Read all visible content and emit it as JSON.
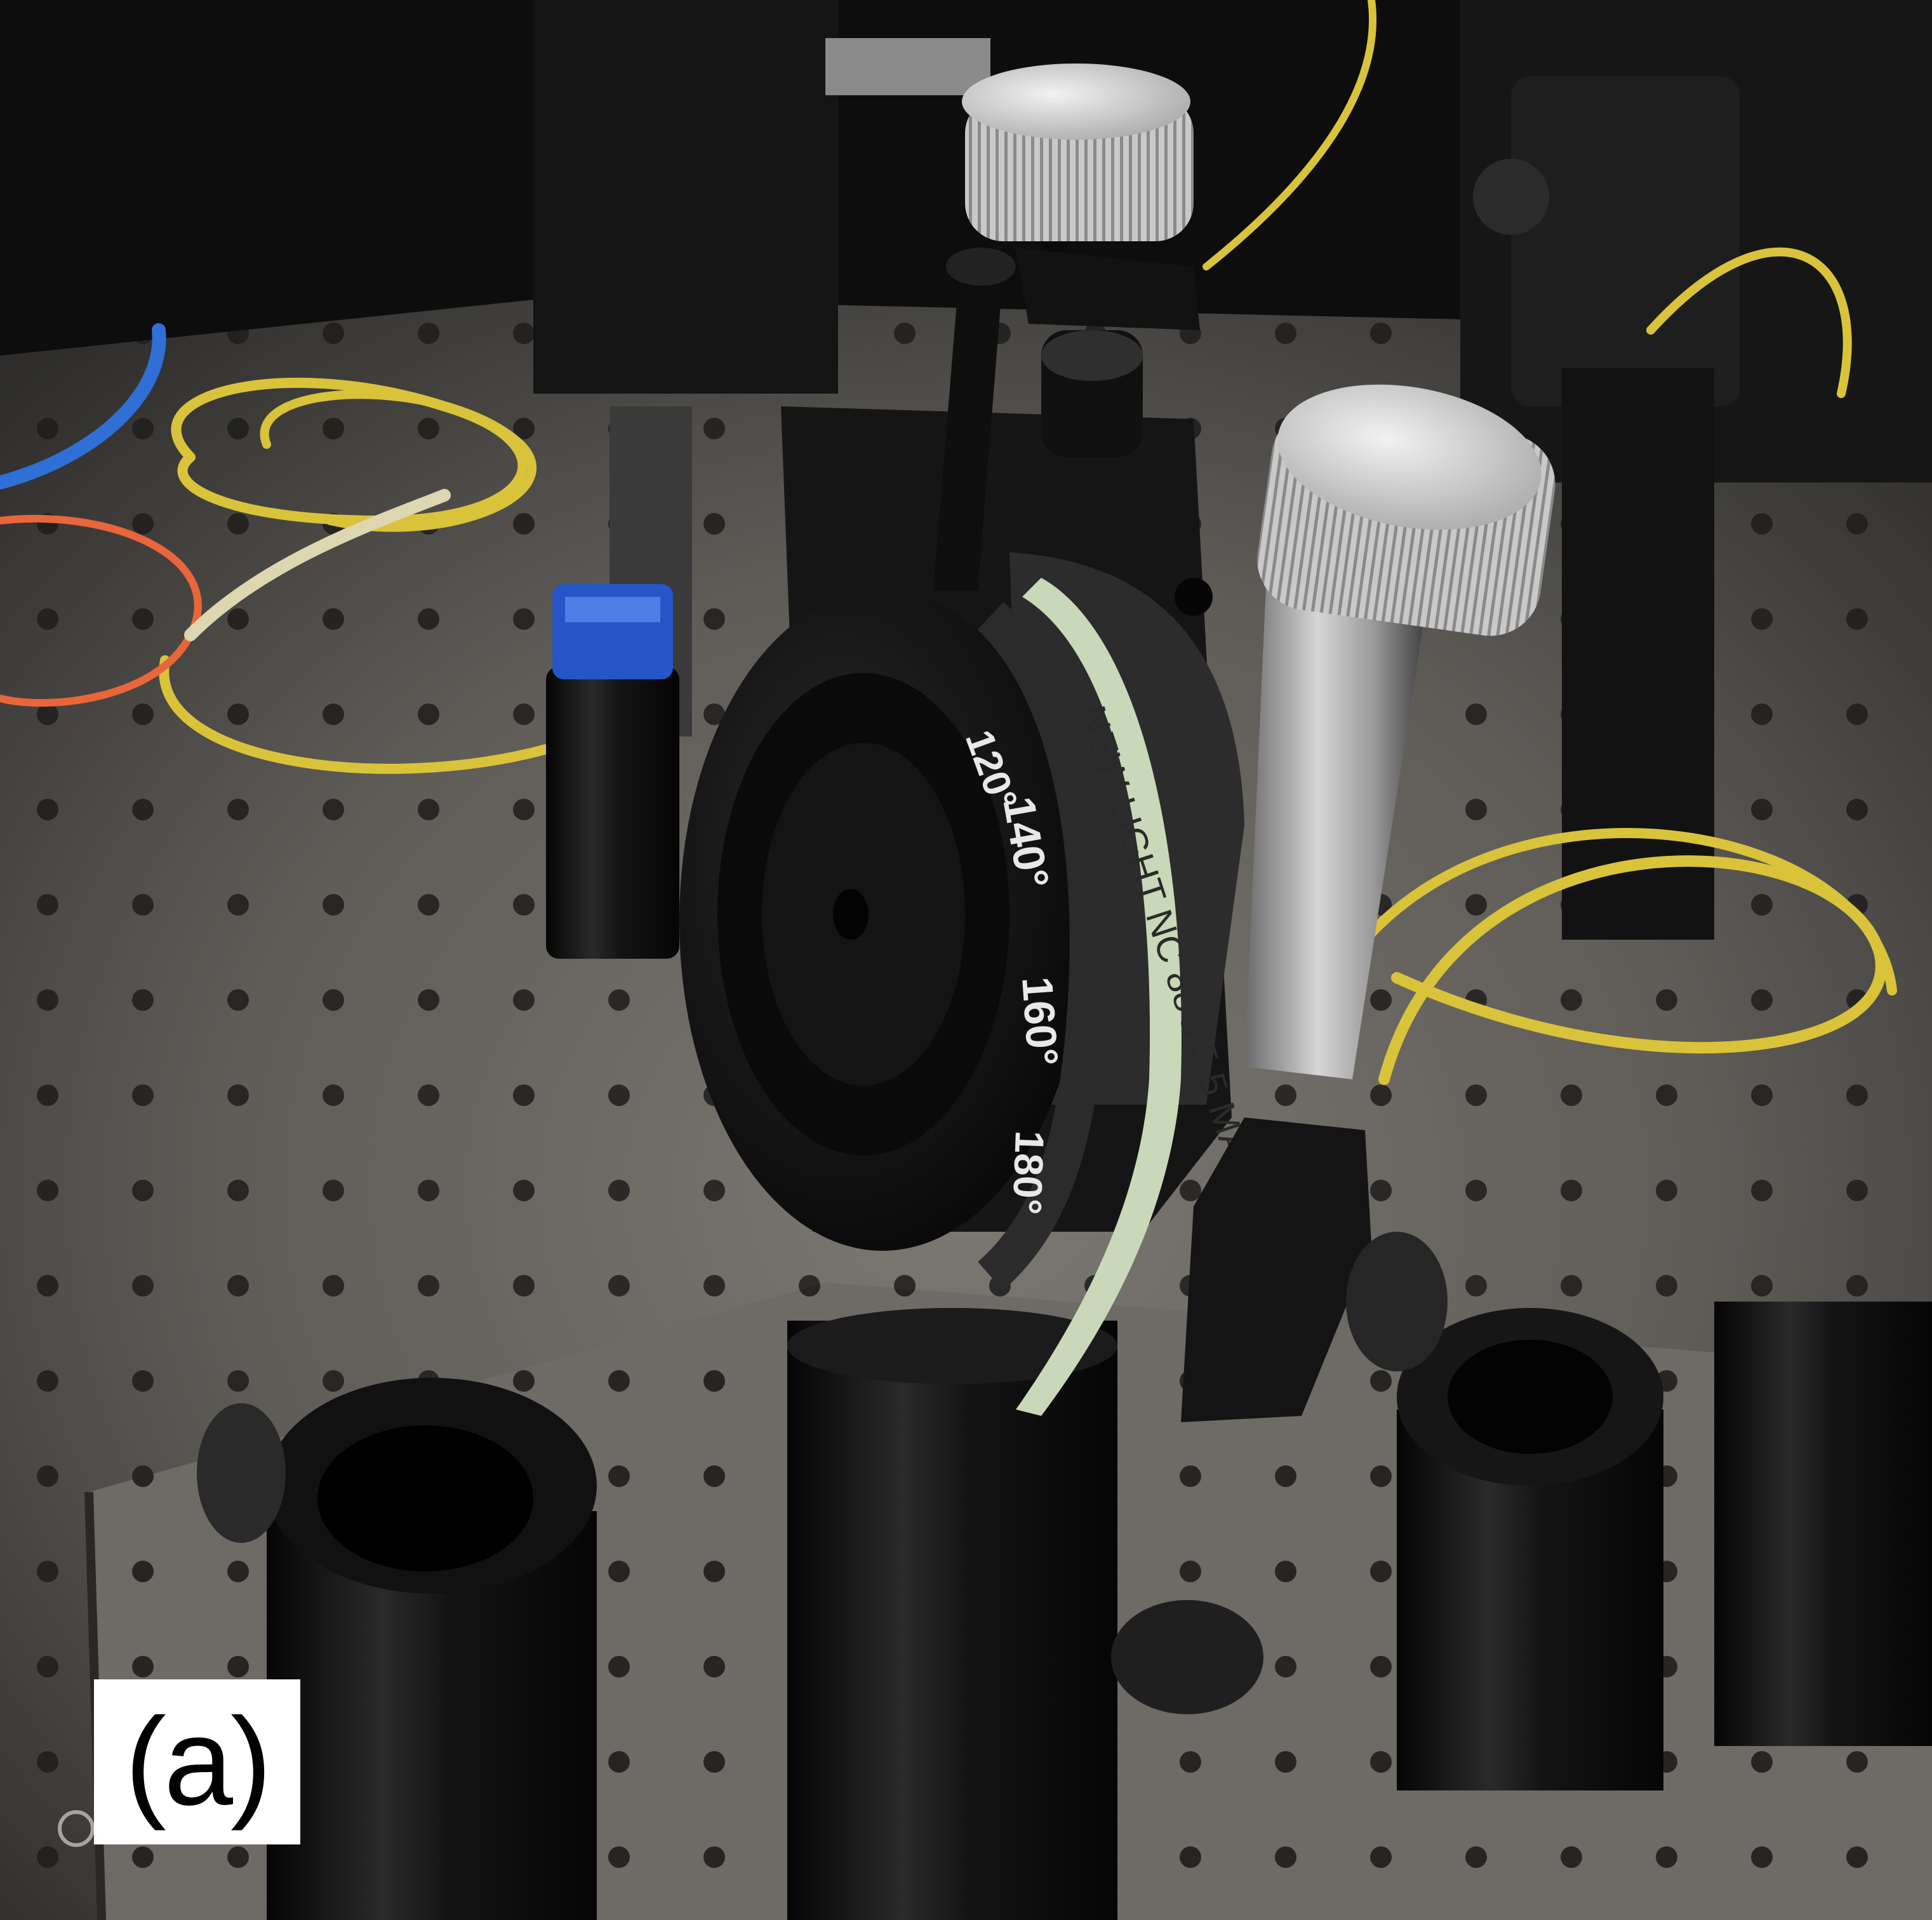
{
  "panel_label": "(a)",
  "dial": {
    "tick_labels": [
      "120°",
      "140°",
      "160°",
      "180°"
    ]
  },
  "label_tape": {
    "handwritten_text": "NEW LIGHT NC 88C 5.5 MAD (E)"
  },
  "colors": {
    "table": "#5f5c58",
    "background": "#0d0d0d",
    "fiber_yellow": "#d9c33a",
    "fiber_blue": "#2f6fd6",
    "fiber_orange": "#e8663a",
    "anodized_black": "#111111",
    "knob_silver": "#cfcfcf",
    "tape_green": "#c9d8b8",
    "clamp_blue": "#2456c8"
  }
}
